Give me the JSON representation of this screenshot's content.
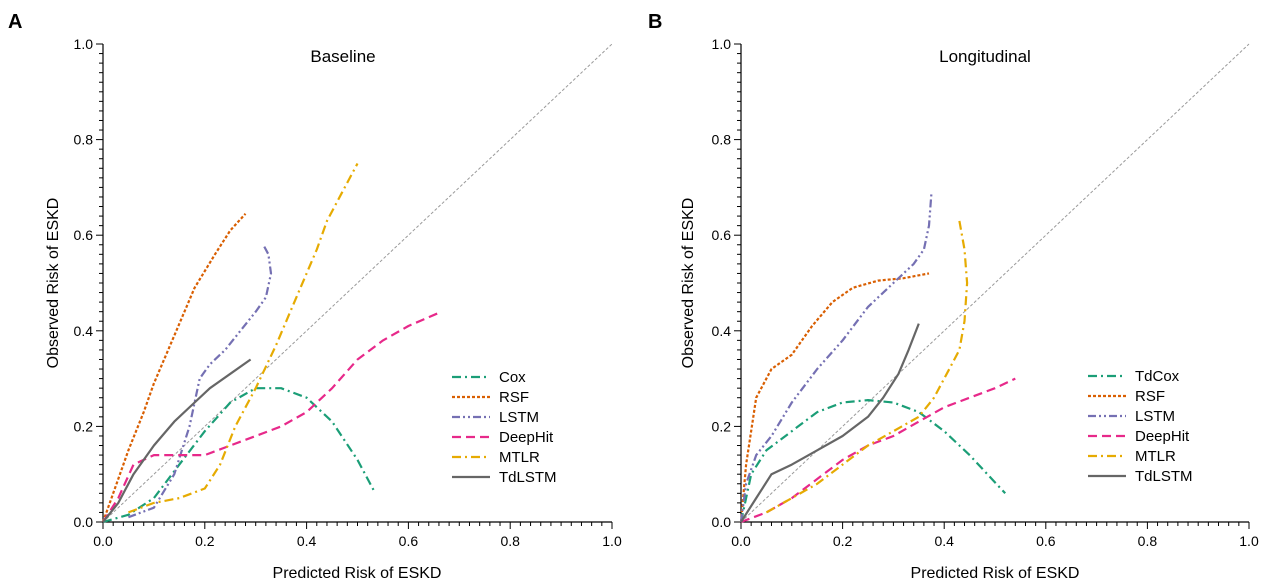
{
  "chart_data": [
    {
      "type": "line",
      "panel": "A",
      "title": "Baseline",
      "xlabel": "Predicted Risk of ESKD",
      "ylabel": "Observed Risk of ESKD",
      "xlim": [
        0,
        1
      ],
      "ylim": [
        0,
        1
      ],
      "xticks": [
        "0.0",
        "0.2",
        "0.4",
        "0.6",
        "0.8",
        "1.0"
      ],
      "yticks": [
        "0.0",
        "0.2",
        "0.4",
        "0.6",
        "0.8",
        "1.0"
      ],
      "grid": false,
      "diagonal_reference": true,
      "legend_position": "lower-right",
      "series": [
        {
          "name": "Cox",
          "color": "#1b9e77",
          "style": "dashdot",
          "x": [
            0.0,
            0.05,
            0.1,
            0.15,
            0.2,
            0.25,
            0.3,
            0.35,
            0.4,
            0.45,
            0.5,
            0.535
          ],
          "y": [
            0.0,
            0.015,
            0.05,
            0.12,
            0.19,
            0.25,
            0.28,
            0.28,
            0.26,
            0.21,
            0.13,
            0.06
          ]
        },
        {
          "name": "RSF",
          "color": "#d95f02",
          "style": "dotted",
          "x": [
            0.0,
            0.02,
            0.05,
            0.08,
            0.1,
            0.14,
            0.18,
            0.22,
            0.25,
            0.28
          ],
          "y": [
            0.0,
            0.06,
            0.15,
            0.23,
            0.29,
            0.39,
            0.49,
            0.56,
            0.61,
            0.645
          ]
        },
        {
          "name": "LSTM",
          "color": "#7570b3",
          "style": "dashdotdot",
          "x": [
            0.05,
            0.1,
            0.14,
            0.17,
            0.19,
            0.21,
            0.24,
            0.27,
            0.3,
            0.32,
            0.33,
            0.325,
            0.315
          ],
          "y": [
            0.01,
            0.03,
            0.1,
            0.2,
            0.3,
            0.33,
            0.36,
            0.4,
            0.44,
            0.47,
            0.52,
            0.56,
            0.58
          ]
        },
        {
          "name": "DeepHit",
          "color": "#e7298a",
          "style": "dashed",
          "x": [
            0.0,
            0.03,
            0.06,
            0.1,
            0.15,
            0.2,
            0.25,
            0.3,
            0.35,
            0.4,
            0.45,
            0.5,
            0.55,
            0.6,
            0.665
          ],
          "y": [
            0.0,
            0.05,
            0.12,
            0.14,
            0.14,
            0.14,
            0.16,
            0.18,
            0.2,
            0.23,
            0.28,
            0.34,
            0.38,
            0.41,
            0.44
          ]
        },
        {
          "name": "MTLR",
          "color": "#e6ab02",
          "style": "dashdot",
          "x": [
            0.05,
            0.1,
            0.15,
            0.2,
            0.23,
            0.26,
            0.3,
            0.34,
            0.38,
            0.42,
            0.44,
            0.47,
            0.5
          ],
          "y": [
            0.02,
            0.04,
            0.05,
            0.07,
            0.12,
            0.2,
            0.28,
            0.37,
            0.47,
            0.57,
            0.63,
            0.69,
            0.75
          ]
        },
        {
          "name": "TdLSTM",
          "color": "#666666",
          "style": "solid",
          "x": [
            0.0,
            0.03,
            0.06,
            0.1,
            0.14,
            0.18,
            0.21,
            0.25,
            0.29
          ],
          "y": [
            0.0,
            0.04,
            0.1,
            0.16,
            0.21,
            0.25,
            0.28,
            0.31,
            0.34
          ]
        }
      ]
    },
    {
      "type": "line",
      "panel": "B",
      "title": "Longitudinal",
      "xlabel": "Predicted Risk of ESKD",
      "ylabel": "Observed Risk of ESKD",
      "xlim": [
        0,
        1
      ],
      "ylim": [
        0,
        1
      ],
      "xticks": [
        "0.0",
        "0.2",
        "0.4",
        "0.6",
        "0.8",
        "1.0"
      ],
      "yticks": [
        "0.0",
        "0.2",
        "0.4",
        "0.6",
        "0.8",
        "1.0"
      ],
      "grid": false,
      "diagonal_reference": true,
      "legend_position": "lower-right",
      "series": [
        {
          "name": "TdCox",
          "color": "#1b9e77",
          "style": "dashdot",
          "x": [
            0.0,
            0.02,
            0.05,
            0.1,
            0.15,
            0.2,
            0.25,
            0.3,
            0.35,
            0.4,
            0.45,
            0.52
          ],
          "y": [
            0.0,
            0.1,
            0.15,
            0.19,
            0.23,
            0.25,
            0.255,
            0.25,
            0.23,
            0.19,
            0.14,
            0.06
          ]
        },
        {
          "name": "RSF",
          "color": "#d95f02",
          "style": "dotted",
          "x": [
            0.0,
            0.01,
            0.03,
            0.06,
            0.1,
            0.14,
            0.18,
            0.22,
            0.27,
            0.32,
            0.37
          ],
          "y": [
            0.0,
            0.12,
            0.26,
            0.32,
            0.35,
            0.41,
            0.46,
            0.49,
            0.505,
            0.51,
            0.52
          ]
        },
        {
          "name": "LSTM",
          "color": "#7570b3",
          "style": "dashdotdot",
          "x": [
            0.0,
            0.01,
            0.03,
            0.06,
            0.1,
            0.15,
            0.2,
            0.25,
            0.3,
            0.34,
            0.36,
            0.37,
            0.375
          ],
          "y": [
            0.0,
            0.08,
            0.14,
            0.18,
            0.25,
            0.32,
            0.38,
            0.45,
            0.5,
            0.54,
            0.57,
            0.62,
            0.69
          ]
        },
        {
          "name": "DeepHit",
          "color": "#e7298a",
          "style": "dashed",
          "x": [
            0.0,
            0.05,
            0.1,
            0.15,
            0.2,
            0.25,
            0.3,
            0.35,
            0.4,
            0.45,
            0.5,
            0.54
          ],
          "y": [
            0.0,
            0.02,
            0.05,
            0.09,
            0.13,
            0.16,
            0.18,
            0.21,
            0.24,
            0.26,
            0.28,
            0.3
          ]
        },
        {
          "name": "MTLR",
          "color": "#e6ab02",
          "style": "dashdot",
          "x": [
            0.05,
            0.1,
            0.15,
            0.2,
            0.25,
            0.3,
            0.35,
            0.38,
            0.41,
            0.43,
            0.44,
            0.445,
            0.44,
            0.43
          ],
          "y": [
            0.02,
            0.05,
            0.08,
            0.12,
            0.16,
            0.19,
            0.22,
            0.26,
            0.32,
            0.36,
            0.42,
            0.5,
            0.57,
            0.63
          ]
        },
        {
          "name": "TdLSTM",
          "color": "#666666",
          "style": "solid",
          "x": [
            0.0,
            0.03,
            0.06,
            0.1,
            0.15,
            0.2,
            0.25,
            0.28,
            0.31,
            0.33,
            0.35
          ],
          "y": [
            0.0,
            0.05,
            0.1,
            0.12,
            0.15,
            0.18,
            0.22,
            0.26,
            0.31,
            0.36,
            0.415
          ]
        }
      ]
    }
  ]
}
